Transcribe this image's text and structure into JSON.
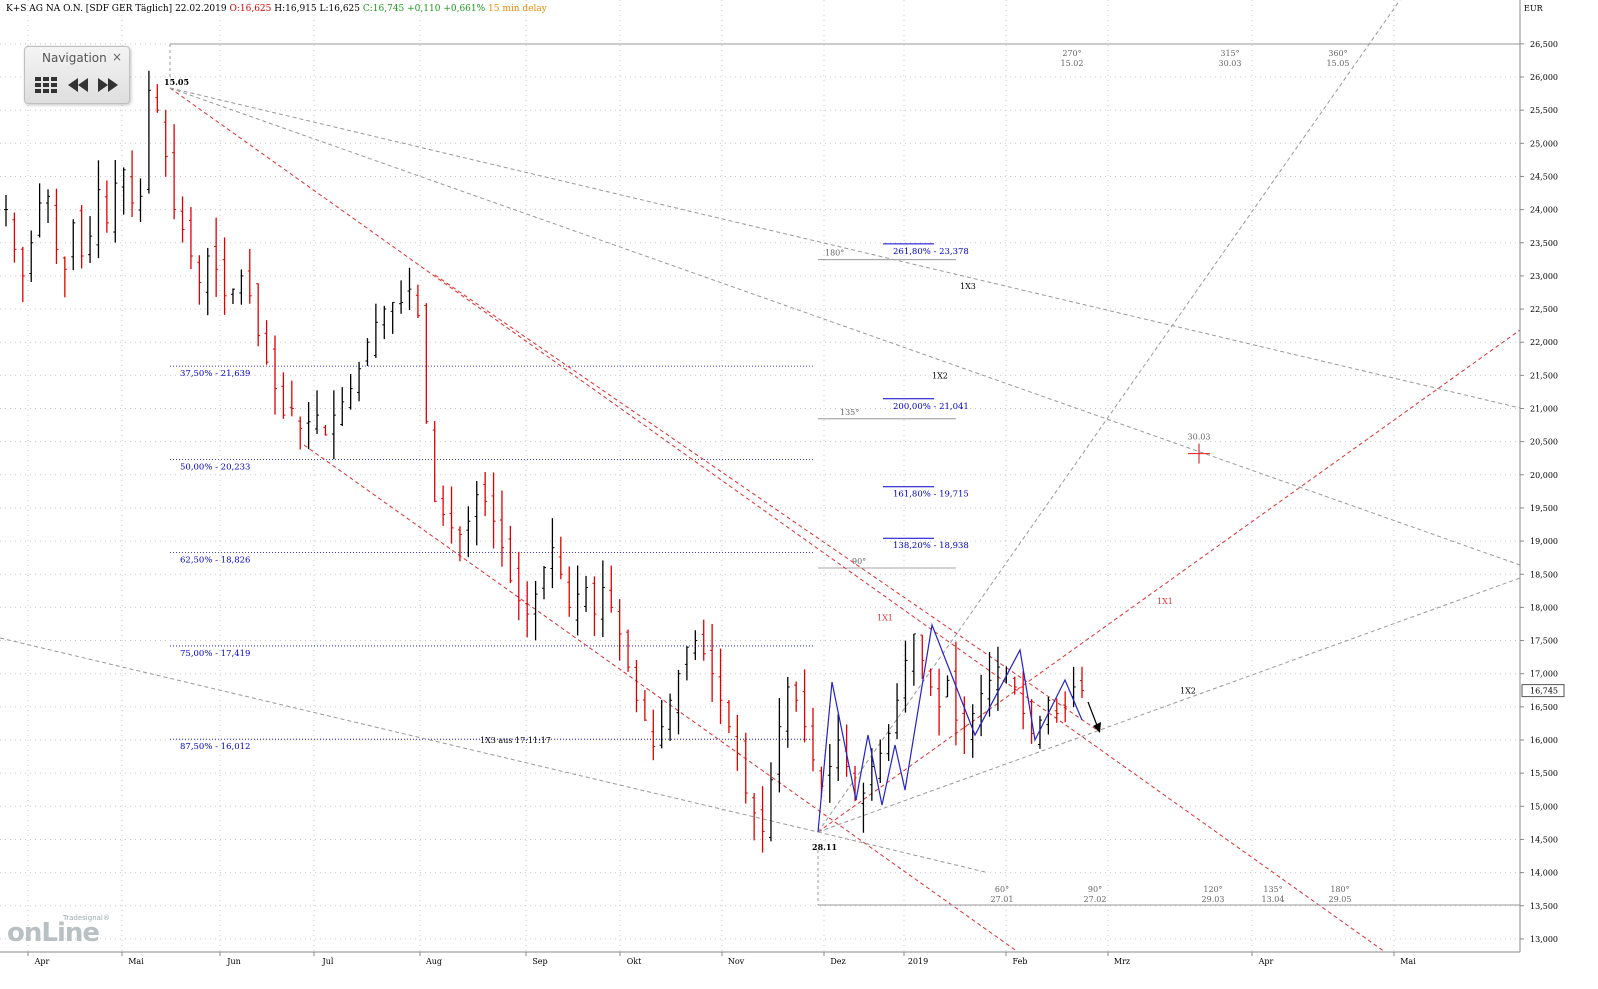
{
  "header": {
    "symbol": "K+S AG NA O.N. [SDF GER Täglich]",
    "date": "22.02.2019",
    "open": "O:16,625",
    "high": "H:16,915",
    "low": "L:16,625",
    "close_change": "C:16,745 +0,110 +0,661%",
    "delay": "15 min delay"
  },
  "navigation": {
    "title": "Navigation",
    "close": "×",
    "grid_icon": "grid-icon",
    "back_icon": "rewind-icon",
    "forward_icon": "fast-forward-icon"
  },
  "logo": {
    "small": "Tradesignal®",
    "big": "onLine"
  },
  "colors": {
    "up_bar": "#000000",
    "down_bar": "#e00000",
    "fib_line": "#0000cc",
    "trend_red": "#e03030",
    "gann_gray": "#999999",
    "zigzag": "#2222cc"
  },
  "chart_data": {
    "type": "ohlc",
    "currency": "EUR",
    "ylim": [
      12.8,
      26.9
    ],
    "yticks": [
      "13,000",
      "13,500",
      "14,000",
      "14,500",
      "15,000",
      "15,500",
      "16,000",
      "16,500",
      "17,000",
      "17,500",
      "18,000",
      "18,500",
      "19,000",
      "19,500",
      "20,000",
      "20,500",
      "21,000",
      "21,500",
      "22,000",
      "22,500",
      "23,000",
      "23,500",
      "24,000",
      "24,500",
      "25,000",
      "25,500",
      "26,000",
      "26,500"
    ],
    "months": [
      "Apr",
      "Mai",
      "Jun",
      "Jul",
      "Aug",
      "Sep",
      "Okt",
      "Nov",
      "Dez",
      "2019",
      "Feb",
      "Mrz",
      "Apr",
      "Mai"
    ],
    "last_price": "16,745",
    "closes": [
      24.0,
      23.4,
      23.0,
      23.5,
      24.1,
      24.2,
      23.4,
      23.1,
      23.8,
      23.3,
      23.6,
      24.3,
      23.8,
      24.4,
      24.6,
      24.1,
      24.2,
      25.8,
      25.5,
      24.8,
      24.0,
      23.7,
      23.3,
      22.9,
      23.3,
      23.1,
      22.7,
      22.8,
      23.0,
      22.7,
      22.1,
      21.7,
      21.3,
      20.9,
      21.0,
      20.7,
      20.8,
      20.9,
      20.6,
      20.9,
      21.1,
      21.3,
      21.6,
      22.0,
      22.3,
      22.5,
      22.6,
      22.6,
      22.8,
      22.4,
      20.8,
      19.6,
      19.4,
      19.2,
      19.1,
      19.3,
      19.7,
      19.6,
      19.3,
      18.9,
      18.4,
      18.1,
      17.9,
      18.2,
      18.6,
      18.9,
      18.5,
      18.0,
      18.2,
      18.3,
      17.9,
      18.3,
      18.0,
      17.6,
      17.1,
      16.6,
      16.3,
      15.9,
      16.2,
      16.6,
      17.0,
      17.4,
      17.5,
      17.3,
      17.0,
      16.6,
      16.2,
      15.8,
      15.2,
      14.9,
      14.62,
      15.4,
      16.2,
      16.8,
      16.6,
      16.2,
      15.7,
      15.3,
      15.6,
      16.0,
      15.6,
      15.1,
      15.2,
      15.6,
      15.8,
      16.1,
      16.6,
      17.2,
      17.6,
      17.2,
      16.8,
      16.5,
      16.9,
      16.3,
      16.2,
      16.4,
      16.7,
      16.9,
      17.1,
      17.0,
      16.8,
      16.4,
      16.1,
      16.3,
      16.6,
      16.4,
      16.5,
      16.8,
      16.745
    ],
    "pivots": [
      {
        "label": "15.05",
        "value": 25.85
      },
      {
        "label": "28.11",
        "value": 14.62
      }
    ],
    "fib_levels": [
      {
        "label": "37,50% - 21,639",
        "value": 21.639
      },
      {
        "label": "50,00% - 20,233",
        "value": 20.233
      },
      {
        "label": "62,50% - 18,826",
        "value": 18.826
      },
      {
        "label": "75,00% - 17,419",
        "value": 17.419
      },
      {
        "label": "87,50% - 16,012",
        "value": 16.012
      }
    ],
    "extensions": [
      {
        "label": "261,80% - 23,378",
        "value": 23.378
      },
      {
        "label": "200,00% - 21,041",
        "value": 21.041
      },
      {
        "label": "161,80% - 19,715",
        "value": 19.715
      },
      {
        "label": "138,20% - 18,938",
        "value": 18.938
      }
    ],
    "angle_labels": [
      {
        "label": "180°",
        "value": 23.35
      },
      {
        "label": "135°",
        "value": 20.95
      },
      {
        "label": "90°",
        "value": 18.7
      }
    ],
    "time_labels_top": [
      {
        "deg": "270°",
        "date": "15.02"
      },
      {
        "deg": "315°",
        "date": "30.03"
      },
      {
        "deg": "360°",
        "date": "15.05"
      }
    ],
    "time_labels_bottom": [
      {
        "deg": "60°",
        "date": "27.01"
      },
      {
        "deg": "90°",
        "date": "27.02"
      },
      {
        "deg": "120°",
        "date": "29.03"
      },
      {
        "deg": "135°",
        "date": "13.04"
      },
      {
        "deg": "180°",
        "date": "29.05"
      }
    ],
    "gann_labels": [
      {
        "label": "1X3",
        "value": 22.85
      },
      {
        "label": "1X2",
        "value": 21.5
      },
      {
        "label": "1X1",
        "value": 17.85
      },
      {
        "label": "1X1",
        "value": 18.1
      },
      {
        "label": "1X2",
        "value": 16.75
      }
    ],
    "annotation": {
      "label": "1X3 aus 17:11:17",
      "value": 16.0
    },
    "cross_marker": {
      "label": "30.03",
      "value": 20.32
    }
  }
}
